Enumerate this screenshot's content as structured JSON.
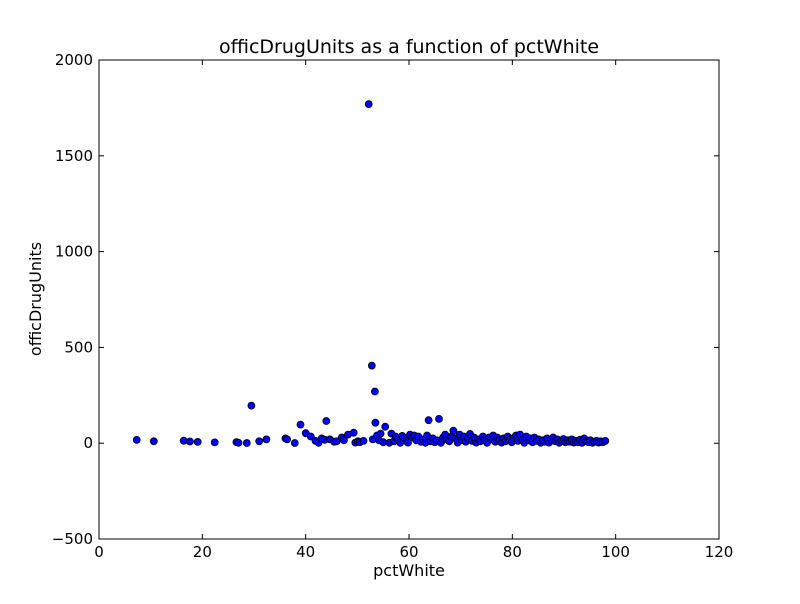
{
  "chart_data": {
    "type": "scatter",
    "title": "officDrugUnits as a function of pctWhite",
    "xlabel": "pctWhite",
    "ylabel": "officDrugUnits",
    "xlim": [
      0,
      120
    ],
    "ylim": [
      -500,
      2000
    ],
    "xticks": [
      0,
      20,
      40,
      60,
      80,
      100,
      120
    ],
    "yticks": [
      -500,
      0,
      500,
      1000,
      1500,
      2000
    ],
    "xtick_labels": [
      "0",
      "20",
      "40",
      "60",
      "80",
      "100",
      "120"
    ],
    "ytick_labels": [
      "−500",
      "0",
      "500",
      "1000",
      "1500",
      "2000"
    ],
    "grid": false,
    "marker_color": "#0000ff",
    "marker_edge": "#000000",
    "points": [
      [
        7.3,
        17
      ],
      [
        10.6,
        10
      ],
      [
        16.4,
        13
      ],
      [
        17.6,
        9
      ],
      [
        19.1,
        7
      ],
      [
        22.4,
        4
      ],
      [
        26.6,
        6
      ],
      [
        27.0,
        2
      ],
      [
        28.6,
        1
      ],
      [
        29.5,
        196
      ],
      [
        31.0,
        10
      ],
      [
        32.4,
        20
      ],
      [
        36.1,
        25
      ],
      [
        36.4,
        20
      ],
      [
        37.9,
        1
      ],
      [
        39.0,
        97
      ],
      [
        40.0,
        52
      ],
      [
        41.0,
        35
      ],
      [
        41.9,
        12
      ],
      [
        42.5,
        2
      ],
      [
        43.1,
        25
      ],
      [
        43.7,
        18
      ],
      [
        44.0,
        116
      ],
      [
        44.7,
        20
      ],
      [
        45.5,
        8
      ],
      [
        46.0,
        10
      ],
      [
        47.0,
        30
      ],
      [
        47.4,
        15
      ],
      [
        48.2,
        45
      ],
      [
        49.3,
        55
      ],
      [
        49.6,
        3
      ],
      [
        50.1,
        10
      ],
      [
        50.5,
        5
      ],
      [
        51.2,
        12
      ],
      [
        52.2,
        1770
      ],
      [
        52.8,
        405
      ],
      [
        53.0,
        20
      ],
      [
        53.4,
        270
      ],
      [
        53.5,
        107
      ],
      [
        53.8,
        40
      ],
      [
        54.2,
        15
      ],
      [
        54.5,
        50
      ],
      [
        55.0,
        5
      ],
      [
        55.4,
        86
      ],
      [
        56.2,
        2
      ],
      [
        56.6,
        50
      ],
      [
        57.1,
        10
      ],
      [
        57.4,
        35
      ],
      [
        57.8,
        20
      ],
      [
        58.3,
        2
      ],
      [
        58.7,
        38
      ],
      [
        59.1,
        25
      ],
      [
        59.5,
        10
      ],
      [
        59.8,
        3
      ],
      [
        60.2,
        45
      ],
      [
        60.6,
        30
      ],
      [
        61.0,
        40
      ],
      [
        61.4,
        15
      ],
      [
        61.8,
        35
      ],
      [
        62.3,
        8
      ],
      [
        62.7,
        20
      ],
      [
        63.2,
        2
      ],
      [
        63.5,
        40
      ],
      [
        63.8,
        120
      ],
      [
        64.2,
        10
      ],
      [
        64.6,
        25
      ],
      [
        65.0,
        5
      ],
      [
        65.4,
        15
      ],
      [
        65.8,
        127
      ],
      [
        66.2,
        2
      ],
      [
        66.6,
        30
      ],
      [
        67.0,
        45
      ],
      [
        67.4,
        20
      ],
      [
        67.8,
        10
      ],
      [
        68.2,
        35
      ],
      [
        68.6,
        65
      ],
      [
        69.0,
        25
      ],
      [
        69.4,
        3
      ],
      [
        69.8,
        45
      ],
      [
        70.2,
        15
      ],
      [
        70.6,
        35
      ],
      [
        71.0,
        8
      ],
      [
        71.4,
        25
      ],
      [
        71.8,
        48
      ],
      [
        72.2,
        12
      ],
      [
        72.6,
        30
      ],
      [
        73.0,
        3
      ],
      [
        73.4,
        20
      ],
      [
        73.8,
        10
      ],
      [
        74.3,
        35
      ],
      [
        74.7,
        15
      ],
      [
        75.1,
        2
      ],
      [
        75.5,
        30
      ],
      [
        75.9,
        20
      ],
      [
        76.3,
        40
      ],
      [
        76.7,
        8
      ],
      [
        77.1,
        30
      ],
      [
        77.5,
        15
      ],
      [
        77.9,
        3
      ],
      [
        78.3,
        25
      ],
      [
        78.7,
        10
      ],
      [
        79.1,
        35
      ],
      [
        79.5,
        18
      ],
      [
        79.9,
        5
      ],
      [
        80.3,
        28
      ],
      [
        80.7,
        40
      ],
      [
        81.1,
        12
      ],
      [
        81.5,
        45
      ],
      [
        81.9,
        20
      ],
      [
        82.3,
        2
      ],
      [
        82.7,
        35
      ],
      [
        83.1,
        15
      ],
      [
        83.5,
        25
      ],
      [
        83.9,
        5
      ],
      [
        84.3,
        30
      ],
      [
        84.7,
        12
      ],
      [
        85.1,
        20
      ],
      [
        85.5,
        2
      ],
      [
        85.9,
        15
      ],
      [
        86.3,
        8
      ],
      [
        86.7,
        25
      ],
      [
        87.1,
        3
      ],
      [
        87.5,
        18
      ],
      [
        87.9,
        30
      ],
      [
        88.3,
        10
      ],
      [
        88.7,
        20
      ],
      [
        89.1,
        2
      ],
      [
        89.5,
        12
      ],
      [
        89.9,
        22
      ],
      [
        90.3,
        5
      ],
      [
        90.7,
        15
      ],
      [
        91.1,
        8
      ],
      [
        91.5,
        20
      ],
      [
        91.9,
        3
      ],
      [
        92.3,
        12
      ],
      [
        92.7,
        5
      ],
      [
        93.1,
        18
      ],
      [
        93.5,
        2
      ],
      [
        93.9,
        25
      ],
      [
        94.3,
        10
      ],
      [
        94.7,
        5
      ],
      [
        95.1,
        15
      ],
      [
        95.5,
        2
      ],
      [
        95.9,
        8
      ],
      [
        96.3,
        12
      ],
      [
        96.7,
        3
      ],
      [
        97.1,
        10
      ],
      [
        97.5,
        5
      ],
      [
        98.0,
        12
      ]
    ]
  }
}
